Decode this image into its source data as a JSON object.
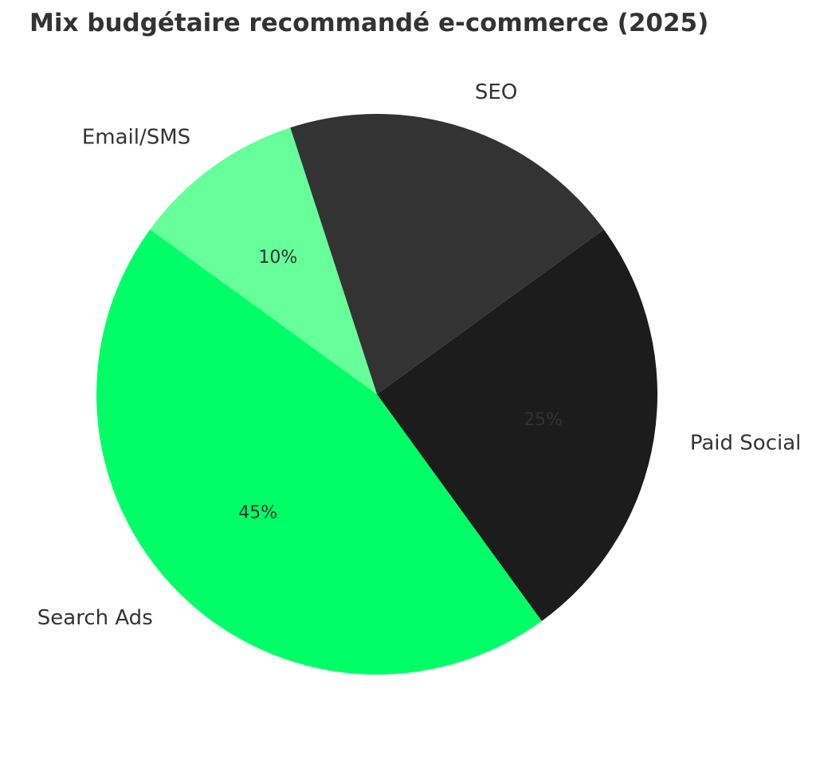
{
  "chart_data": {
    "type": "pie",
    "title": "Mix budgétaire recommandé e-commerce (2025)",
    "categories": [
      "Search Ads",
      "Paid Social",
      "SEO",
      "Email/SMS"
    ],
    "values": [
      45,
      25,
      20,
      10
    ],
    "value_labels": [
      "45%",
      "25%",
      "",
      "10%"
    ],
    "colors": [
      "#00FF66",
      "#1C1C1C",
      "#333333",
      "#66FF99"
    ],
    "label_color": "#333333",
    "start_angle_deg": 144,
    "direction": "counterclockwise",
    "legend": "none"
  }
}
